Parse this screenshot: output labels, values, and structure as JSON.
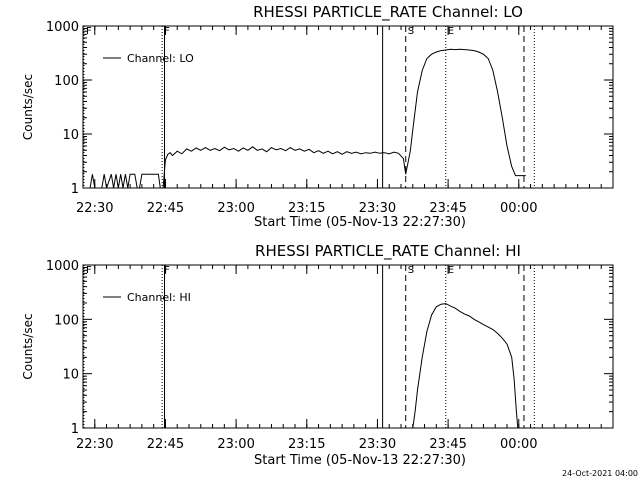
{
  "page": {
    "footer_stamp": "24-Oct-2021 04:00"
  },
  "chart_data": [
    {
      "type": "line",
      "title": "RHESSI PARTICLE_RATE Channel: LO",
      "xlabel": "Start Time (05-Nov-13 22:27:30)",
      "ylabel": "Counts/sec",
      "yscale": "log",
      "ylim": [
        1,
        1000
      ],
      "xlim_min": [
        0,
        112.5
      ],
      "x_ticks": [
        {
          "t": 2.5,
          "label": "22:30"
        },
        {
          "t": 17.5,
          "label": "22:45"
        },
        {
          "t": 32.5,
          "label": "23:00"
        },
        {
          "t": 47.5,
          "label": "23:15"
        },
        {
          "t": 62.5,
          "label": "23:30"
        },
        {
          "t": 77.5,
          "label": "23:45"
        },
        {
          "t": 92.5,
          "label": "00:00"
        }
      ],
      "y_ticks": [
        {
          "v": 1,
          "label": "1"
        },
        {
          "v": 10,
          "label": "10"
        },
        {
          "v": 100,
          "label": "100"
        },
        {
          "v": 1000,
          "label": "1000"
        }
      ],
      "legend": {
        "label": "Channel: LO",
        "position": "top-left"
      },
      "markers": [
        {
          "t": 0.2,
          "style": "dotted",
          "label": "F"
        },
        {
          "t": 16.8,
          "style": "dotted",
          "label": "F"
        },
        {
          "t": 17.3,
          "style": "solid",
          "label": ""
        },
        {
          "t": 63.6,
          "style": "solid",
          "label": ""
        },
        {
          "t": 68.5,
          "style": "dashed",
          "label": "S"
        },
        {
          "t": 77.0,
          "style": "dotted",
          "label": "E"
        },
        {
          "t": 93.6,
          "style": "dashed",
          "label": ""
        },
        {
          "t": 95.8,
          "style": "dotted",
          "label": ""
        }
      ],
      "series": [
        {
          "values": [
            [
              0,
              1
            ],
            [
              1.5,
              1
            ],
            [
              2,
              1.8
            ],
            [
              2.5,
              1
            ],
            [
              4,
              1
            ],
            [
              4.5,
              1.8
            ],
            [
              5,
              1
            ],
            [
              6,
              1.8
            ],
            [
              6.5,
              1
            ],
            [
              7,
              1.8
            ],
            [
              7.5,
              1
            ],
            [
              8,
              1.8
            ],
            [
              8.5,
              1
            ],
            [
              9,
              1.8
            ],
            [
              9.5,
              1
            ],
            [
              10,
              1.8
            ],
            [
              11,
              1.8
            ],
            [
              11.5,
              1
            ],
            [
              12,
              1
            ],
            [
              12.5,
              1.8
            ],
            [
              16,
              1.8
            ],
            [
              16.4,
              1
            ],
            [
              17,
              1
            ],
            [
              17.5,
              3.3
            ],
            [
              18,
              4.2
            ],
            [
              18.5,
              4.5
            ],
            [
              19,
              4.0
            ],
            [
              20,
              4.8
            ],
            [
              21,
              4.3
            ],
            [
              22,
              5.3
            ],
            [
              23,
              4.8
            ],
            [
              24,
              5.5
            ],
            [
              25,
              5.0
            ],
            [
              26,
              5.6
            ],
            [
              27,
              5.0
            ],
            [
              28,
              5.4
            ],
            [
              29,
              4.9
            ],
            [
              30,
              5.7
            ],
            [
              31,
              5.1
            ],
            [
              32,
              5.4
            ],
            [
              33,
              4.8
            ],
            [
              34,
              5.5
            ],
            [
              35,
              5.0
            ],
            [
              36,
              5.8
            ],
            [
              37,
              5.0
            ],
            [
              38,
              5.3
            ],
            [
              39,
              4.7
            ],
            [
              40,
              5.6
            ],
            [
              41,
              5.1
            ],
            [
              42,
              5.4
            ],
            [
              43,
              4.9
            ],
            [
              44,
              5.6
            ],
            [
              45,
              5.0
            ],
            [
              46,
              5.3
            ],
            [
              47,
              4.8
            ],
            [
              48,
              5.2
            ],
            [
              49,
              4.5
            ],
            [
              50,
              4.9
            ],
            [
              51,
              4.4
            ],
            [
              52,
              4.8
            ],
            [
              53,
              4.3
            ],
            [
              54,
              4.7
            ],
            [
              55,
              4.2
            ],
            [
              56,
              4.7
            ],
            [
              57,
              4.4
            ],
            [
              58,
              4.6
            ],
            [
              59,
              4.3
            ],
            [
              60,
              4.5
            ],
            [
              61,
              4.4
            ],
            [
              62,
              4.6
            ],
            [
              63,
              4.4
            ],
            [
              63.6,
              4.5
            ],
            [
              64,
              4.5
            ],
            [
              65,
              4.3
            ],
            [
              66,
              4.6
            ],
            [
              67,
              4.4
            ],
            [
              68,
              3.5
            ],
            [
              68.5,
              1.8
            ],
            [
              69,
              3
            ],
            [
              69.5,
              5
            ],
            [
              70,
              12
            ],
            [
              71,
              60
            ],
            [
              72,
              150
            ],
            [
              73,
              250
            ],
            [
              74,
              300
            ],
            [
              75,
              330
            ],
            [
              76,
              350
            ],
            [
              77,
              360
            ],
            [
              78,
              370
            ],
            [
              79,
              365
            ],
            [
              80,
              370
            ],
            [
              81,
              365
            ],
            [
              82,
              360
            ],
            [
              83,
              350
            ],
            [
              84,
              330
            ],
            [
              85,
              300
            ],
            [
              86,
              250
            ],
            [
              87,
              150
            ],
            [
              88,
              60
            ],
            [
              89,
              20
            ],
            [
              90,
              6
            ],
            [
              91,
              2.5
            ],
            [
              91.8,
              1.7
            ],
            [
              94,
              1.7
            ]
          ]
        }
      ]
    },
    {
      "type": "line",
      "title": "RHESSI PARTICLE_RATE Channel: HI",
      "xlabel": "Start Time (05-Nov-13 22:27:30)",
      "ylabel": "Counts/sec",
      "yscale": "log",
      "ylim": [
        1,
        1000
      ],
      "xlim_min": [
        0,
        112.5
      ],
      "x_ticks": [
        {
          "t": 2.5,
          "label": "22:30"
        },
        {
          "t": 17.5,
          "label": "22:45"
        },
        {
          "t": 32.5,
          "label": "23:00"
        },
        {
          "t": 47.5,
          "label": "23:15"
        },
        {
          "t": 62.5,
          "label": "23:30"
        },
        {
          "t": 77.5,
          "label": "23:45"
        },
        {
          "t": 92.5,
          "label": "00:00"
        }
      ],
      "y_ticks": [
        {
          "v": 1,
          "label": "1"
        },
        {
          "v": 10,
          "label": "10"
        },
        {
          "v": 100,
          "label": "100"
        },
        {
          "v": 1000,
          "label": "1000"
        }
      ],
      "legend": {
        "label": "Channel: HI",
        "position": "top-left"
      },
      "markers": [
        {
          "t": 0.2,
          "style": "dotted",
          "label": "F"
        },
        {
          "t": 16.8,
          "style": "dotted",
          "label": "F"
        },
        {
          "t": 17.3,
          "style": "solid",
          "label": ""
        },
        {
          "t": 63.6,
          "style": "solid",
          "label": ""
        },
        {
          "t": 68.5,
          "style": "dashed",
          "label": "S"
        },
        {
          "t": 77.0,
          "style": "dotted",
          "label": "E"
        },
        {
          "t": 93.6,
          "style": "dashed",
          "label": ""
        },
        {
          "t": 95.8,
          "style": "dotted",
          "label": ""
        }
      ],
      "series": [
        {
          "values": [
            [
              70,
              1
            ],
            [
              70.5,
              2
            ],
            [
              71,
              5
            ],
            [
              72,
              20
            ],
            [
              73,
              60
            ],
            [
              74,
              120
            ],
            [
              75,
              170
            ],
            [
              76,
              190
            ],
            [
              77,
              195
            ],
            [
              78,
              175
            ],
            [
              79,
              160
            ],
            [
              80,
              140
            ],
            [
              81,
              125
            ],
            [
              82,
              115
            ],
            [
              83,
              100
            ],
            [
              84,
              90
            ],
            [
              85,
              80
            ],
            [
              86,
              72
            ],
            [
              87,
              65
            ],
            [
              88,
              55
            ],
            [
              89,
              45
            ],
            [
              90,
              35
            ],
            [
              91,
              20
            ],
            [
              91.5,
              8
            ],
            [
              92,
              2
            ],
            [
              92.3,
              1
            ]
          ]
        }
      ]
    }
  ]
}
